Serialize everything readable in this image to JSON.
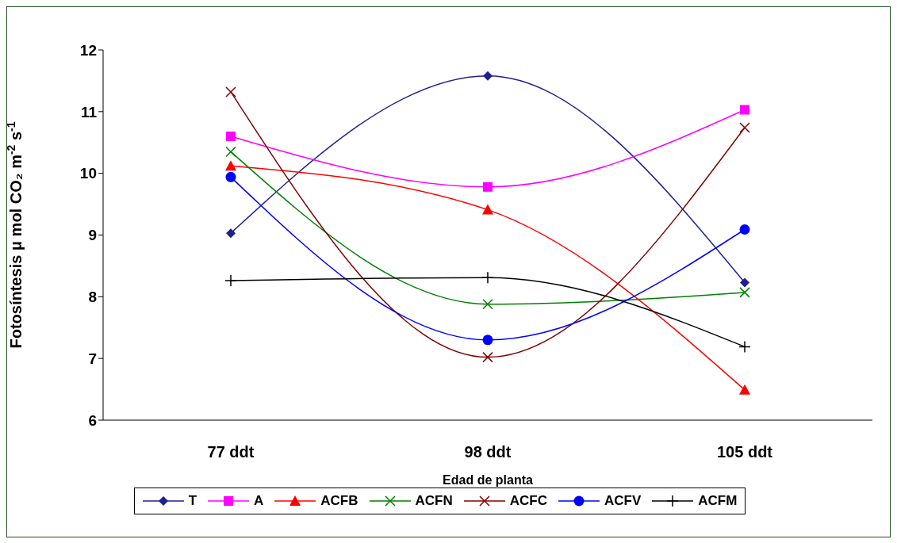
{
  "chart_data": {
    "type": "line",
    "xlabel": "Edad de planta",
    "ylabel": "Fotosíntesis μ mol CO₂ m$^{-2}$ s$^{-1}$",
    "categories": [
      "77 ddt",
      "98 ddt",
      "105 ddt"
    ],
    "ylim": [
      6,
      12
    ],
    "yticks": [
      6,
      7,
      8,
      9,
      10,
      11,
      12
    ],
    "grid": false,
    "legend": "bottom",
    "series": [
      {
        "name": "T",
        "color": "#1f1f8f",
        "marker": "diamond",
        "values": [
          9.03,
          11.58,
          8.23
        ]
      },
      {
        "name": "A",
        "color": "#ff00ff",
        "marker": "square",
        "values": [
          10.6,
          9.78,
          11.03
        ]
      },
      {
        "name": "ACFB",
        "color": "#ff0000",
        "marker": "triangle",
        "values": [
          10.12,
          9.41,
          6.49
        ]
      },
      {
        "name": "ACFN",
        "color": "#008000",
        "marker": "cross",
        "values": [
          10.35,
          7.88,
          8.07
        ]
      },
      {
        "name": "ACFC",
        "color": "#800000",
        "marker": "cross",
        "values": [
          11.32,
          7.02,
          10.74
        ]
      },
      {
        "name": "ACFV",
        "color": "#0000ff",
        "marker": "circle",
        "values": [
          9.94,
          7.3,
          9.09
        ]
      },
      {
        "name": "ACFM",
        "color": "#000000",
        "marker": "plus",
        "values": [
          8.26,
          8.31,
          7.19
        ]
      }
    ]
  }
}
